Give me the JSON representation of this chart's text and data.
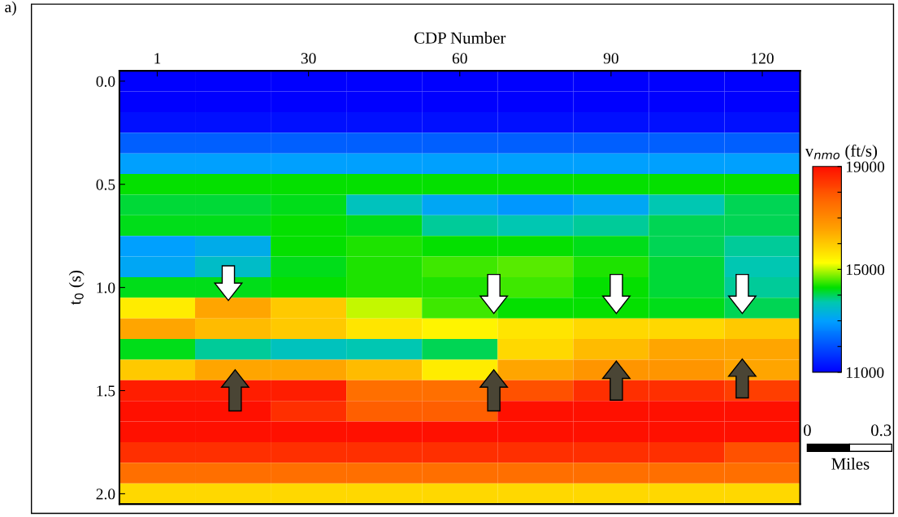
{
  "chart_data": {
    "type": "heatmap",
    "xlabel": "CDP Number",
    "ylabel": "t$_{0}$ (s)",
    "clabel": "v$_{nmo}$ (ft/s)",
    "categories": [
      "1",
      null,
      "30",
      null,
      "60",
      null,
      "90",
      null,
      "120"
    ],
    "y_categories": [
      "0.0",
      null,
      null,
      null,
      null,
      "0.5",
      null,
      null,
      null,
      null,
      "1.0",
      null,
      null,
      null,
      null,
      "1.5",
      null,
      null,
      null,
      null,
      "2.0"
    ],
    "cells": [
      [
        11000,
        11000,
        11000,
        11000,
        11000,
        11000,
        11000,
        11000,
        11000
      ],
      [
        11000,
        11000,
        11000,
        11000,
        11000,
        11000,
        11000,
        11000,
        11000
      ],
      [
        11200,
        11200,
        11200,
        11200,
        11200,
        11200,
        11200,
        11200,
        11200
      ],
      [
        12200,
        12200,
        12200,
        12200,
        12200,
        12200,
        12200,
        12200,
        12200
      ],
      [
        13000,
        13000,
        13000,
        13000,
        13000,
        13000,
        13000,
        13000,
        13000
      ],
      [
        14300,
        14300,
        14300,
        14300,
        14300,
        14300,
        14300,
        14300,
        14300
      ],
      [
        14100,
        14100,
        14200,
        13600,
        13100,
        12900,
        13100,
        13700,
        14000
      ],
      [
        14200,
        14200,
        14300,
        14200,
        13800,
        13700,
        13800,
        14000,
        14000
      ],
      [
        13000,
        13200,
        14300,
        14400,
        14300,
        14300,
        14200,
        14000,
        13800
      ],
      [
        13100,
        13500,
        14200,
        14400,
        14500,
        14600,
        14400,
        14100,
        13700
      ],
      [
        14200,
        14200,
        14300,
        14400,
        14400,
        14500,
        14300,
        14100,
        13800
      ],
      [
        15500,
        16500,
        16000,
        15000,
        14500,
        14300,
        14300,
        14200,
        14000
      ],
      [
        16500,
        16200,
        16000,
        15600,
        15400,
        15600,
        15800,
        15800,
        16000
      ],
      [
        14200,
        13800,
        13600,
        13700,
        14000,
        15800,
        16200,
        16500,
        16500
      ],
      [
        16000,
        16500,
        16500,
        16200,
        15500,
        16500,
        16800,
        16800,
        16500
      ],
      [
        18800,
        18800,
        18800,
        17500,
        17500,
        18000,
        18500,
        18500,
        18300
      ],
      [
        19000,
        19000,
        18500,
        17800,
        17800,
        19000,
        19000,
        19000,
        19000
      ],
      [
        19000,
        19000,
        19000,
        19000,
        19000,
        19000,
        19000,
        19000,
        19000
      ],
      [
        18500,
        18500,
        18500,
        18500,
        18500,
        18500,
        18500,
        18500,
        18000
      ],
      [
        17500,
        17500,
        17500,
        17500,
        17500,
        17500,
        17500,
        17500,
        17500
      ],
      [
        15800,
        15800,
        15800,
        15800,
        15800,
        15800,
        15800,
        15800,
        15800
      ]
    ],
    "clim": [
      11000,
      19000
    ],
    "cticks": [
      11000,
      {
        "value": 12000,
        "label": null
      },
      {
        "value": 13000,
        "label": null
      },
      {
        "value": 14000,
        "label": null
      },
      15000,
      {
        "value": 16000,
        "label": null
      },
      {
        "value": 17000,
        "label": null
      },
      {
        "value": 18000,
        "label": null
      },
      19000
    ],
    "annotations": [
      "a)",
      "0",
      "0.3",
      "Miles"
    ]
  }
}
